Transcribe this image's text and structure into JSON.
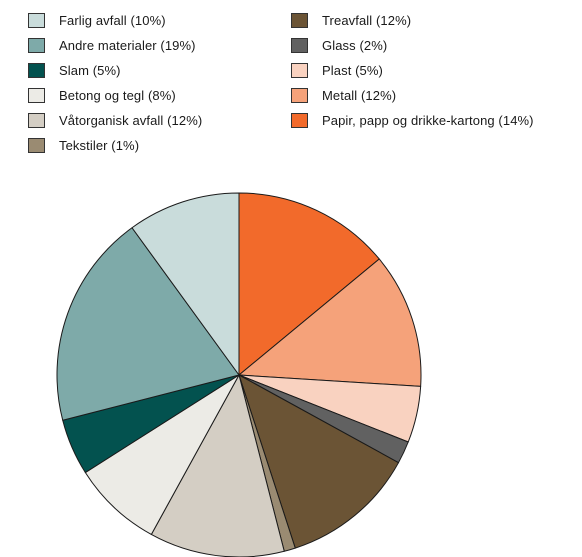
{
  "chart_data": {
    "type": "pie",
    "title": "",
    "legend_position": "top",
    "slices": [
      {
        "label": "Papir, papp og drikke-kartong (14%)",
        "value": 14,
        "color": "#f26a2b"
      },
      {
        "label": "Metall (12%)",
        "value": 12,
        "color": "#f5a27a"
      },
      {
        "label": "Plast (5%)",
        "value": 5,
        "color": "#f9d2c0"
      },
      {
        "label": "Glass (2%)",
        "value": 2,
        "color": "#616161"
      },
      {
        "label": "Treavfall (12%)",
        "value": 12,
        "color": "#6b5435"
      },
      {
        "label": "Tekstiler (1%)",
        "value": 1,
        "color": "#9a8b72"
      },
      {
        "label": "Våtorganisk avfall (12%)",
        "value": 12,
        "color": "#d4cec4"
      },
      {
        "label": "Betong og tegl (8%)",
        "value": 8,
        "color": "#ecebe6"
      },
      {
        "label": "Slam (5%)",
        "value": 5,
        "color": "#03524f"
      },
      {
        "label": "Andre materialer (19%)",
        "value": 19,
        "color": "#7eaaa9"
      },
      {
        "label": "Farlig avfall (10%)",
        "value": 10,
        "color": "#c9dcdb"
      }
    ]
  },
  "legend": {
    "left": [
      {
        "label": "Farlig avfall (10%)",
        "color": "#c9dcdb"
      },
      {
        "label": "Andre materialer (19%)",
        "color": "#7eaaa9"
      },
      {
        "label": "Slam (5%)",
        "color": "#03524f"
      },
      {
        "label": "Betong og tegl (8%)",
        "color": "#ecebe6"
      },
      {
        "label": "Våtorganisk avfall (12%)",
        "color": "#d4cec4"
      },
      {
        "label": "Tekstiler (1%)",
        "color": "#9a8b72"
      }
    ],
    "right": [
      {
        "label": "Treavfall (12%)",
        "color": "#6b5435"
      },
      {
        "label": "Glass (2%)",
        "color": "#616161"
      },
      {
        "label": "Plast (5%)",
        "color": "#f9d2c0"
      },
      {
        "label": "Metall (12%)",
        "color": "#f5a27a"
      },
      {
        "label": "Papir, papp og drikke-kartong (14%)",
        "color": "#f26a2b"
      }
    ]
  }
}
